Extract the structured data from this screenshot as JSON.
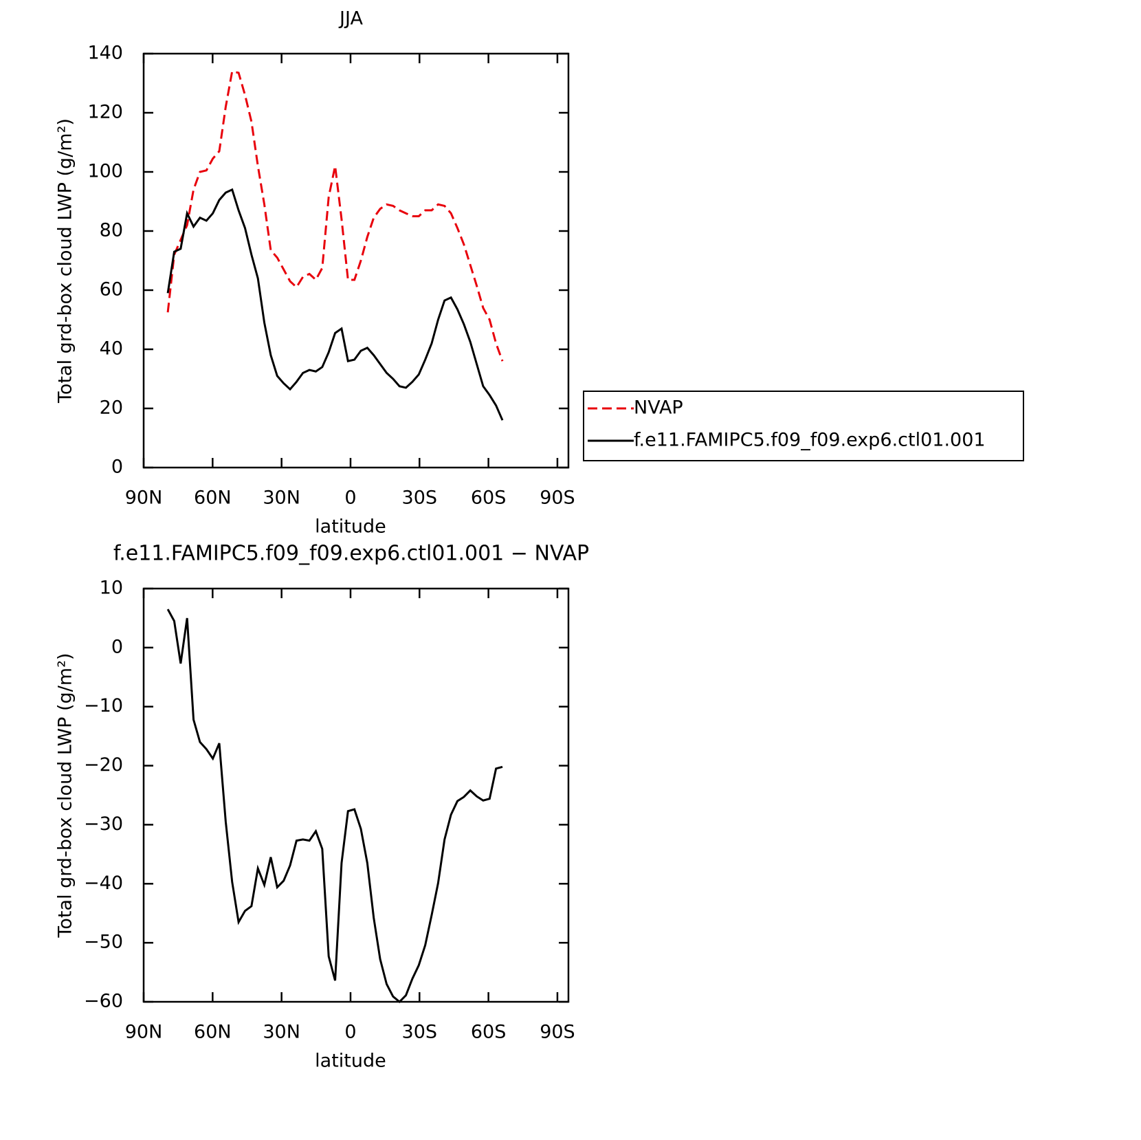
{
  "chart_data": [
    {
      "type": "line",
      "title": "JJA",
      "xlabel": "latitude",
      "ylabel": "Total grd-box cloud LWP (g/m²)",
      "xlim": [
        90,
        -94.8
      ],
      "ylim": [
        0,
        140
      ],
      "xticks": [
        {
          "value": 90,
          "label": "90N"
        },
        {
          "value": 60,
          "label": "60N"
        },
        {
          "value": 30,
          "label": "30N"
        },
        0,
        {
          "value": -30,
          "label": "30S"
        },
        {
          "value": -60,
          "label": "60S"
        },
        {
          "value": -90,
          "label": "90S"
        }
      ],
      "yticks": [
        0,
        20,
        40,
        60,
        80,
        100,
        120,
        140
      ],
      "legend": "right",
      "x": [
        79.5,
        76.7,
        73.9,
        71.1,
        68.3,
        65.5,
        62.7,
        59.9,
        57.1,
        54.3,
        51.5,
        48.7,
        45.9,
        43.1,
        40.3,
        37.5,
        34.7,
        31.9,
        29.1,
        26.3,
        23.5,
        20.7,
        17.9,
        15.1,
        12.3,
        9.5,
        6.7,
        3.9,
        1.1,
        -1.7,
        -4.5,
        -7.3,
        -10.1,
        -12.9,
        -15.7,
        -18.5,
        -21.3,
        -24.1,
        -26.9,
        -29.7,
        -32.5,
        -35.3,
        -38.1,
        -40.9,
        -43.7,
        -46.5,
        -49.3,
        -52.1,
        -54.9,
        -57.7,
        -60.5,
        -63.3,
        -66.1
      ],
      "series": [
        {
          "name": "NVAP",
          "color": "#e8000b",
          "linestyle": "dashed",
          "values": [
            52.5,
            72,
            77,
            82,
            94,
            100,
            100.5,
            104.5,
            107,
            122,
            134,
            133.5,
            126,
            117,
            102,
            89,
            73.5,
            71,
            67,
            63,
            61,
            64.5,
            65.5,
            63.5,
            67.5,
            91.5,
            102,
            84,
            63.5,
            63.5,
            70,
            78,
            84.5,
            87.5,
            89,
            88.5,
            87,
            86,
            85,
            85,
            87,
            87,
            89,
            88.5,
            86,
            81,
            75.5,
            68.5,
            61.5,
            54,
            50,
            42,
            36
          ]
        },
        {
          "name": "f.e11.FAMIPC5.f09_f09.exp6.ctl01.001",
          "color": "#000000",
          "linestyle": "solid",
          "values": [
            59,
            73,
            74,
            86,
            81.5,
            84.5,
            83.5,
            86,
            90.5,
            93,
            94,
            87,
            81,
            72,
            64,
            49,
            38,
            31,
            28.5,
            26.5,
            29,
            32,
            33,
            32.5,
            34,
            39,
            45.5,
            47,
            36,
            36.5,
            39.5,
            40.5,
            38,
            35,
            32,
            30,
            27.5,
            27,
            29,
            31.5,
            36.5,
            42,
            50,
            56.5,
            57.5,
            53.5,
            48.5,
            42.5,
            35,
            27.5,
            24.5,
            21,
            16
          ]
        }
      ]
    },
    {
      "type": "line",
      "title": "f.e11.FAMIPC5.f09_f09.exp6.ctl01.001 − NVAP",
      "xlabel": "latitude",
      "ylabel": "Total grd-box cloud LWP (g/m²)",
      "xlim": [
        90,
        -94.8
      ],
      "ylim": [
        -60,
        10
      ],
      "xticks": [
        {
          "value": 90,
          "label": "90N"
        },
        {
          "value": 60,
          "label": "60N"
        },
        {
          "value": 30,
          "label": "30N"
        },
        0,
        {
          "value": -30,
          "label": "30S"
        },
        {
          "value": -60,
          "label": "60S"
        },
        {
          "value": -90,
          "label": "90S"
        }
      ],
      "yticks": [
        {
          "value": -60,
          "label": "−60"
        },
        {
          "value": -50,
          "label": "−50"
        },
        {
          "value": -40,
          "label": "−40"
        },
        {
          "value": -30,
          "label": "−30"
        },
        {
          "value": -20,
          "label": "−20"
        },
        {
          "value": -10,
          "label": "−10"
        },
        0,
        10
      ],
      "x": [
        79.5,
        76.7,
        73.9,
        71.1,
        68.3,
        65.5,
        62.7,
        59.9,
        57.1,
        54.3,
        51.5,
        48.7,
        45.9,
        43.1,
        40.3,
        37.5,
        34.7,
        31.9,
        29.1,
        26.3,
        23.5,
        20.7,
        17.9,
        15.1,
        12.3,
        9.5,
        6.7,
        3.9,
        1.1,
        -1.7,
        -4.5,
        -7.3,
        -10.1,
        -12.9,
        -15.7,
        -18.5,
        -21.3,
        -24.1,
        -26.9,
        -29.7,
        -32.5,
        -35.3,
        -38.1,
        -40.9,
        -43.7,
        -46.5,
        -49.3,
        -52.1,
        -54.9,
        -57.7,
        -60.5,
        -63.3,
        -66.1
      ],
      "color": "#000000",
      "values": [
        6.5,
        4.5,
        -2.7,
        5,
        -12.2,
        -16,
        -17.2,
        -18.8,
        -16.2,
        -29.5,
        -39.7,
        -46.5,
        -44.6,
        -43.8,
        -37.4,
        -40.2,
        -35.5,
        -40.6,
        -39.5,
        -36.9,
        -32.7,
        -32.5,
        -32.7,
        -31.1,
        -34.1,
        -52.3,
        -56.4,
        -36.5,
        -27.7,
        -27.4,
        -30.7,
        -36.5,
        -45.8,
        -52.8,
        -57,
        -59.1,
        -60,
        -58.9,
        -56.1,
        -53.8,
        -50.4,
        -45.3,
        -39.9,
        -32.5,
        -28.3,
        -26,
        -25.3,
        -24.2,
        -25.2,
        -25.9,
        -25.6,
        -20.5,
        -20.2
      ]
    }
  ]
}
